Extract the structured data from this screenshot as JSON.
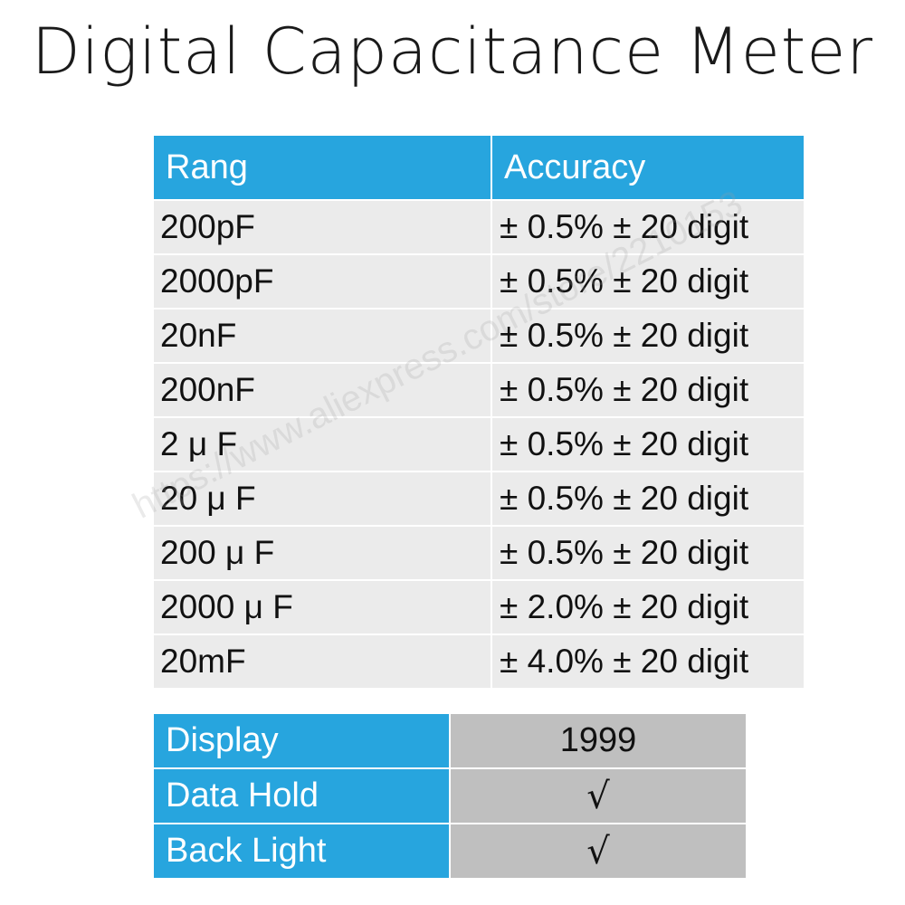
{
  "title": "Digital Capacitance Meter",
  "colors": {
    "header_blue": "#27a5de",
    "row_gray": "#ebebeb",
    "value_gray": "#bfbfbf"
  },
  "spec_table": {
    "headers": [
      "Rang",
      "Accuracy"
    ],
    "rows": [
      {
        "range": "200pF",
        "accuracy": "± 0.5% ± 20 digit"
      },
      {
        "range": "2000pF",
        "accuracy": "± 0.5% ± 20 digit"
      },
      {
        "range": "20nF",
        "accuracy": "± 0.5% ± 20 digit"
      },
      {
        "range": "200nF",
        "accuracy": "± 0.5% ± 20 digit"
      },
      {
        "range": "2 μ F",
        "accuracy": "± 0.5% ± 20 digit"
      },
      {
        "range": "20 μ F",
        "accuracy": "± 0.5% ± 20 digit"
      },
      {
        "range": "200 μ F",
        "accuracy": "± 0.5% ± 20 digit"
      },
      {
        "range": "2000 μ F",
        "accuracy": "± 2.0% ± 20 digit"
      },
      {
        "range": "20mF",
        "accuracy": "± 4.0% ± 20 digit"
      }
    ]
  },
  "feature_table": {
    "rows": [
      {
        "label": "Display",
        "value": "1999"
      },
      {
        "label": "Data Hold",
        "value": "√"
      },
      {
        "label": "Back Light",
        "value": "√"
      }
    ]
  },
  "watermark": "https://www.aliexpress.com/store/2210153"
}
